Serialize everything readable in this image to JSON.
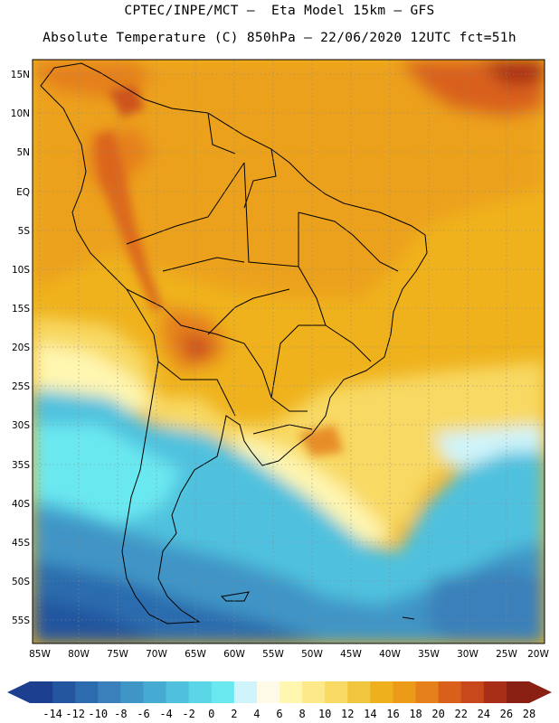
{
  "header": {
    "line1": "CPTEC/INPE/MCT –  Eta Model 15km – GFS",
    "line2": "Absolute Temperature (C) 850hPa – 22/06/2020 12UTC fct=51h"
  },
  "map": {
    "lat_labels": [
      "15N",
      "10N",
      "5N",
      "EQ",
      "5S",
      "10S",
      "15S",
      "20S",
      "25S",
      "30S",
      "35S",
      "40S",
      "45S",
      "50S",
      "55S"
    ],
    "lon_labels": [
      "85W",
      "80W",
      "75W",
      "70W",
      "65W",
      "60W",
      "55W",
      "50W",
      "45W",
      "40W",
      "35W",
      "30W",
      "25W",
      "20W"
    ]
  },
  "colorbar": {
    "labels": [
      "-14",
      "-12",
      "-10",
      "-8",
      "-6",
      "-4",
      "-2",
      "0",
      "2",
      "4",
      "6",
      "8",
      "10",
      "12",
      "14",
      "16",
      "18",
      "20",
      "22",
      "24",
      "26",
      "28"
    ],
    "colors": [
      "#1d3f8f",
      "#24559f",
      "#2c6cae",
      "#3a80ba",
      "#3f95c6",
      "#46abd3",
      "#4fc1de",
      "#5ad6e7",
      "#6ae8f0",
      "#cff4fb",
      "#fff9e8",
      "#fff6b0",
      "#fde98a",
      "#f8d964",
      "#f2c53e",
      "#eeb11d",
      "#eb9b17",
      "#e5801a",
      "#d9601b",
      "#c8471b",
      "#a82e17",
      "#8a1f13"
    ]
  }
}
